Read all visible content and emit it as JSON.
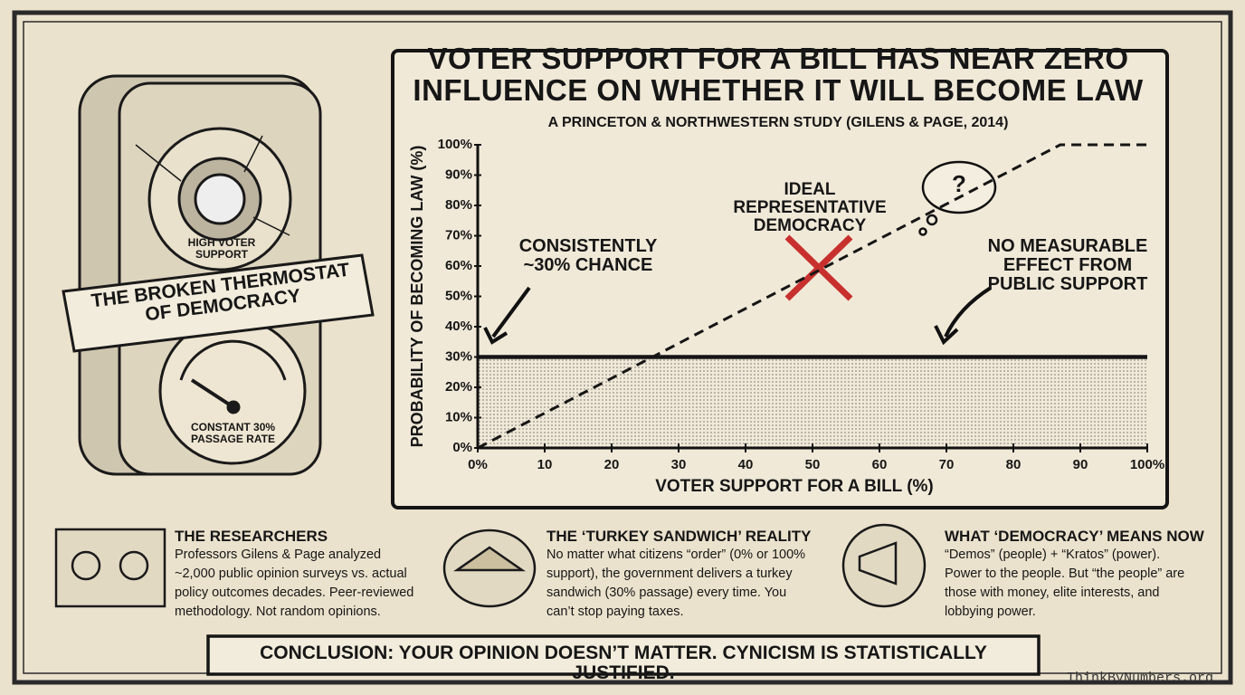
{
  "chart_data": {
    "type": "line",
    "title": "VOTER SUPPORT FOR A BILL HAS NEAR ZERO INFLUENCE ON WHETHER IT WILL BECOME LAW",
    "subtitle": "A PRINCETON & NORTHWESTERN STUDY (GILENS & PAGE, 2014)",
    "x_label": "VOTER SUPPORT FOR A BILL (%)",
    "y_label": "PROBABILITY OF BECOMING LAW (%)",
    "xlim": [
      0,
      100
    ],
    "ylim": [
      0,
      100
    ],
    "xticks": [
      {
        "value": 0,
        "label": "0%"
      },
      10,
      20,
      30,
      40,
      50,
      60,
      70,
      80,
      90,
      {
        "value": 100,
        "label": "100%"
      }
    ],
    "yticks": [
      {
        "value": 0,
        "label": "0%"
      },
      {
        "value": 10,
        "label": "10%"
      },
      {
        "value": 20,
        "label": "20%"
      },
      {
        "value": 30,
        "label": "30%"
      },
      {
        "value": 40,
        "label": "40%"
      },
      {
        "value": 50,
        "label": "50%"
      },
      {
        "value": 60,
        "label": "60%"
      },
      {
        "value": 70,
        "label": "70%"
      },
      {
        "value": 80,
        "label": "80%"
      },
      {
        "value": 90,
        "label": "90%"
      },
      {
        "value": 100,
        "label": "100%"
      }
    ],
    "grid": false,
    "series": [
      {
        "x": [
          0,
          100
        ],
        "values": [
          30,
          30
        ],
        "color": "#151515",
        "style": "solid",
        "fill": true
      },
      {
        "x": [
          0,
          87,
          100
        ],
        "values": [
          0,
          100,
          100
        ],
        "color": "#151515",
        "style": "dashed"
      }
    ],
    "annotations": [
      {
        "text": "CONSISTENTLY ~30% CHANCE"
      },
      {
        "text": "IDEAL REPRESENTATIVE DEMOCRACY"
      },
      {
        "text": "NO MEASURABLE EFFECT FROM PUBLIC SUPPORT"
      },
      {
        "text": "?"
      }
    ]
  },
  "illustration": {
    "top_dial": "HIGH VOTER SUPPORT",
    "banner": "THE BROKEN THERMOSTAT OF DEMOCRACY",
    "bottom_gauge": "CONSTANT 30% PASSAGE RATE"
  },
  "panels": [
    {
      "heading": "THE RESEARCHERS",
      "body": "Professors Gilens & Page analyzed ~2,000 public opinion surveys vs. actual policy outcomes decades. Peer-reviewed methodology. Not random opinions."
    },
    {
      "heading": "THE ‘TURKEY SANDWICH’ REALITY",
      "body": "No matter what citizens “order” (0% or 100% support), the government delivers a turkey sandwich (30% passage) every time. You can’t stop paying taxes."
    },
    {
      "heading": "WHAT ‘DEMOCRACY’ MEANS NOW",
      "body": "“Demos” (people) + “Kratos” (power). Power to the people. But “the people” are those with money, elite interests, and lobbying power."
    }
  ],
  "conclusion": "CONCLUSION: YOUR OPINION DOESN’T MATTER. CYNICISM IS STATISTICALLY JUSTIFIED.",
  "watermark": "ThinkByNumbers.org"
}
